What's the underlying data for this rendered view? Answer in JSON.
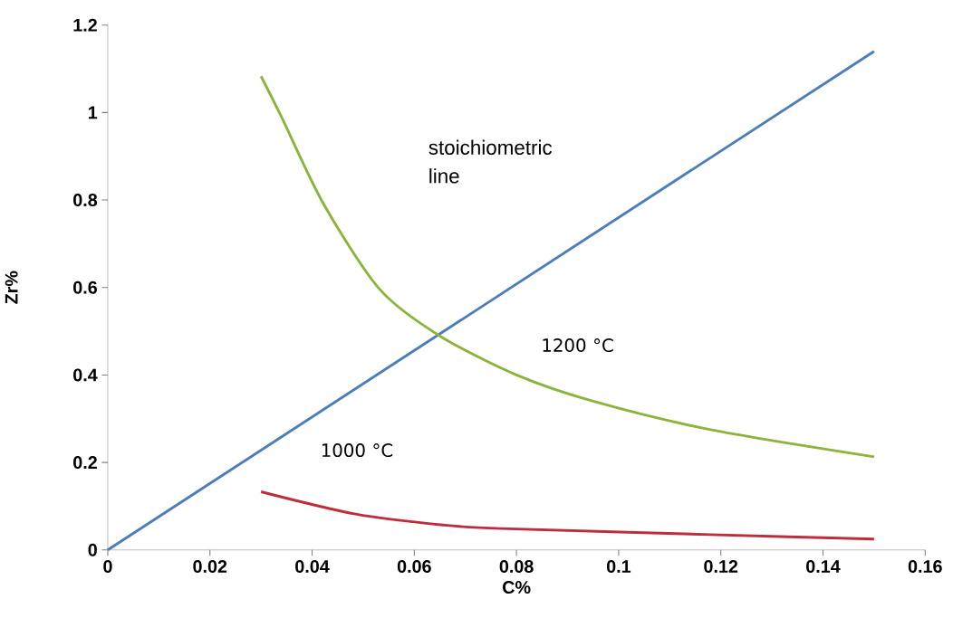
{
  "chart_data": {
    "type": "line",
    "xlabel": "C%",
    "ylabel": "Zr%",
    "xlim": [
      0,
      0.16
    ],
    "ylim": [
      0,
      1.2
    ],
    "xticks": [
      0,
      0.02,
      0.04,
      0.06,
      0.08,
      0.1,
      0.12,
      0.14,
      0.16
    ],
    "yticks": [
      0,
      0.2,
      0.4,
      0.6,
      0.8,
      1,
      1.2
    ],
    "grid": false,
    "marker": "none",
    "line_style": "solid",
    "series": [
      {
        "color": "#4a7ebb",
        "x": [
          0,
          0.15
        ],
        "values": [
          0,
          1.14
        ]
      },
      {
        "color": "#8cb43c",
        "x": [
          0.03,
          0.034,
          0.0423,
          0.0533,
          0.0649,
          0.08,
          0.095,
          0.118,
          0.15
        ],
        "values": [
          1.083,
          0.99,
          0.79,
          0.595,
          0.49,
          0.4,
          0.34,
          0.275,
          0.213
        ]
      },
      {
        "color": "#be2d3c",
        "x": [
          0.03,
          0.0485,
          0.0656,
          0.077,
          0.118,
          0.15
        ],
        "values": [
          0.133,
          0.082,
          0.057,
          0.049,
          0.035,
          0.025
        ]
      }
    ],
    "annotations": [
      "stoichiometric line",
      "1200 °C",
      "1000 °C"
    ]
  }
}
